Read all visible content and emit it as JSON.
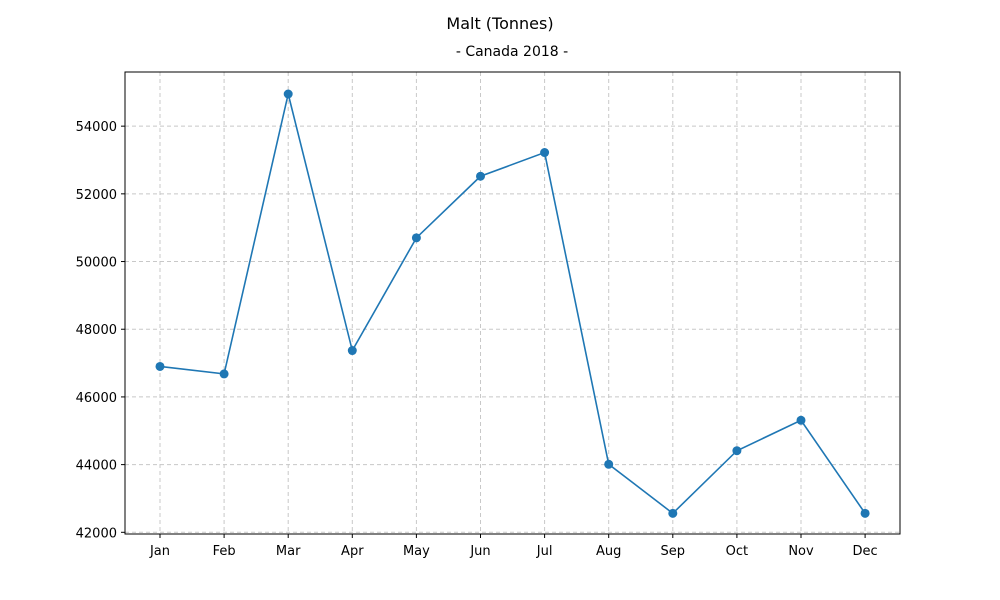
{
  "chart_data": {
    "type": "line",
    "title": "Malt (Tonnes)",
    "subtitle": "- Canada 2018 -",
    "xlabel": "",
    "ylabel": "",
    "categories": [
      "Jan",
      "Feb",
      "Mar",
      "Apr",
      "May",
      "Jun",
      "Jul",
      "Aug",
      "Sep",
      "Oct",
      "Nov",
      "Dec"
    ],
    "series": [
      {
        "values": [
          46900,
          46680,
          54950,
          47370,
          50700,
          52520,
          53220,
          44010,
          42560,
          44410,
          45310,
          42560
        ],
        "color": "#1f77b4"
      }
    ],
    "y_ticks": [
      42000,
      44000,
      46000,
      48000,
      50000,
      52000,
      54000
    ],
    "ylim": [
      41950,
      55600
    ],
    "grid": true,
    "legend": "none"
  }
}
